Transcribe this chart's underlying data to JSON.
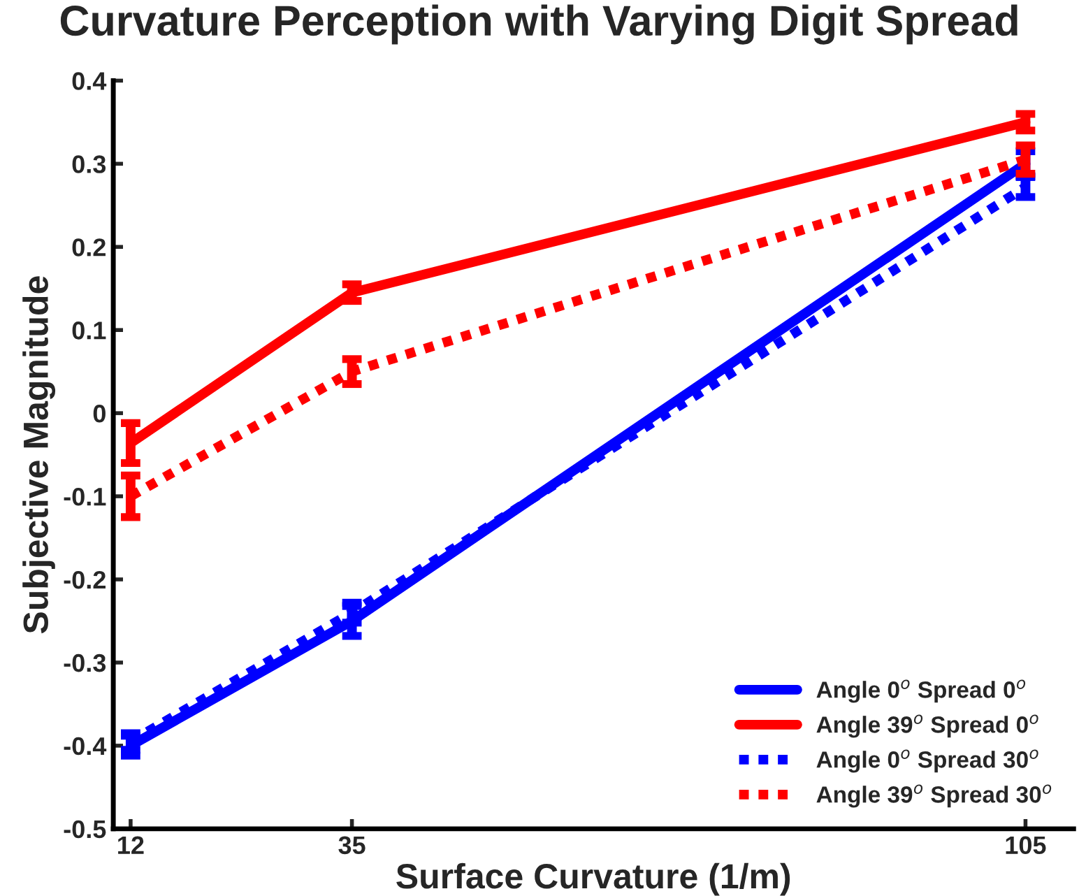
{
  "chart_data": {
    "type": "line",
    "title": "Curvature Perception with Varying Digit Spread",
    "xlabel": "Surface Curvature (1/m)",
    "ylabel": "Subjective Magnitude",
    "x": [
      12,
      35,
      105
    ],
    "series": [
      {
        "name": "Angle 0$^{o}$ Spread 0$^{o}$",
        "color": "#0000ff",
        "line_style": "solid",
        "values": [
          -0.4,
          -0.25,
          0.3
        ],
        "errors": [
          0.012,
          0.018,
          0.015
        ]
      },
      {
        "name": "Angle 39$^{o}$ Spread 0$^{o}$",
        "color": "#ff0000",
        "line_style": "solid",
        "values": [
          -0.036,
          0.145,
          0.35
        ],
        "errors": [
          0.024,
          0.01,
          0.01
        ]
      },
      {
        "name": "Angle 0$^{o}$ Spread 30$^{o}$",
        "color": "#0000ff",
        "line_style": "dotted",
        "values": [
          -0.395,
          -0.24,
          0.272
        ],
        "errors": [
          0.01,
          0.012,
          0.012
        ]
      },
      {
        "name": "Angle 39$^{o}$ Spread 30$^{o}$",
        "color": "#ff0000",
        "line_style": "dotted",
        "values": [
          -0.1,
          0.05,
          0.305
        ],
        "errors": [
          0.025,
          0.015,
          0.017
        ]
      }
    ],
    "xlim": [
      10.2,
      110
    ],
    "xticks": [
      12,
      35,
      105
    ],
    "ylim": [
      -0.5,
      0.4
    ],
    "yticks": [
      -0.5,
      -0.4,
      -0.3,
      -0.2,
      -0.1,
      0,
      0.1,
      0.2,
      0.3,
      0.4
    ],
    "grid": false,
    "legend": "bottom right",
    "marker": "none"
  }
}
